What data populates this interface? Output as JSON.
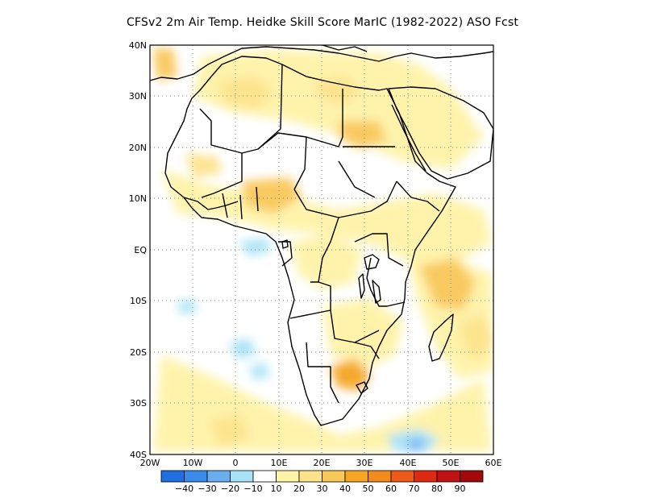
{
  "title": "CFSv2  2m Air Temp. Heidke Skill Score MarIC (1982-2022) ASO Fcst",
  "map": {
    "lon_range": [
      -20,
      60
    ],
    "lat_range": [
      -40,
      40
    ],
    "lat_labels": [
      "40N",
      "30N",
      "20N",
      "10N",
      "EQ",
      "10S",
      "20S",
      "30S",
      "40S"
    ],
    "lon_labels": [
      "20W",
      "10W",
      "0",
      "10E",
      "20E",
      "30E",
      "40E",
      "50E",
      "60E"
    ],
    "gridlines": "dotted"
  },
  "colorbar": {
    "labels": [
      "-40",
      "-30",
      "-20",
      "-10",
      "10",
      "20",
      "30",
      "40",
      "50",
      "60",
      "70",
      "80",
      "90"
    ],
    "colors": [
      "#1f6fe0",
      "#3a8bea",
      "#6aaef0",
      "#a7e2f7",
      "#ffffff",
      "#fff3a8",
      "#fde38a",
      "#f9c85a",
      "#f5a623",
      "#f28b1c",
      "#ee5a1a",
      "#dd2a10",
      "#c01212",
      "#a00a0a"
    ]
  }
}
